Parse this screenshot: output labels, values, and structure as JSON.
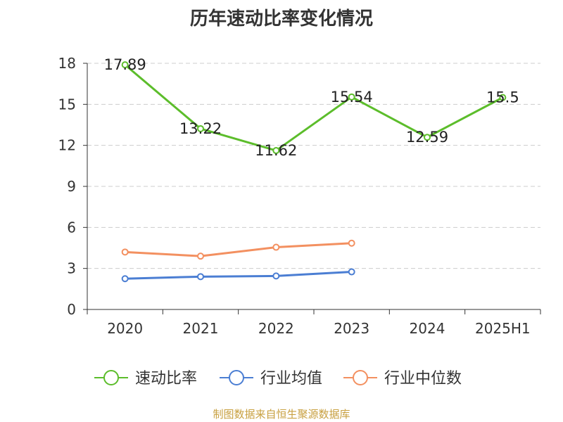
{
  "colors": {
    "axis": "#333333",
    "grid": "#cccccc",
    "text": "#333333",
    "source": "#c8a040"
  },
  "footer": {
    "source": "制图数据来自恒生聚源数据库"
  },
  "chart_data": {
    "type": "line",
    "title": "历年速动比率变化情况",
    "categories": [
      "2020",
      "2021",
      "2022",
      "2023",
      "2024",
      "2025H1"
    ],
    "yticks": [
      0,
      3,
      6,
      9,
      12,
      15,
      18
    ],
    "ylim": [
      0,
      18
    ],
    "grid": "horizontal dashed",
    "legend": "bottom",
    "series": [
      {
        "name": "速动比率",
        "values": [
          17.89,
          13.22,
          11.62,
          15.54,
          12.59,
          15.5
        ],
        "labels": [
          "17.89",
          "13.22",
          "11.62",
          "15.54",
          "12.59",
          "15.5"
        ],
        "color": "#5cbd2b"
      },
      {
        "name": "行业均值",
        "values": [
          2.25,
          2.4,
          2.45,
          2.75,
          null,
          null
        ],
        "color": "#4b7ed3"
      },
      {
        "name": "行业中位数",
        "values": [
          4.2,
          3.9,
          4.55,
          4.85,
          null,
          null
        ],
        "color": "#f39060"
      }
    ]
  }
}
